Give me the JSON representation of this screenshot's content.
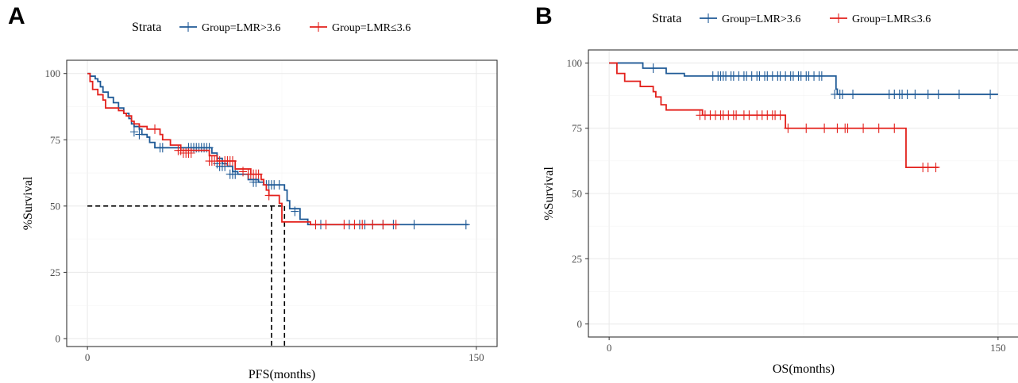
{
  "chart_data": [
    {
      "panel_label": "A",
      "type": "line",
      "subtype": "kaplan-meier",
      "title": "",
      "xlabel": "PFS(months)",
      "ylabel": "%Survival",
      "xlim": [
        -8,
        158
      ],
      "ylim": [
        -3,
        105
      ],
      "xticks": [
        0,
        150
      ],
      "yticks": [
        0,
        25,
        50,
        75,
        100
      ],
      "grid": true,
      "legend": {
        "title": "Strata",
        "position": "top"
      },
      "colors": {
        "LMR_gt": "#1f5a96",
        "LMR_le": "#e3211c"
      },
      "series": [
        {
          "name": "Group=LMR>3.6",
          "color": "#1f5a96",
          "steps": [
            [
              0,
              100
            ],
            [
              1,
              99
            ],
            [
              3,
              98
            ],
            [
              4,
              97
            ],
            [
              5,
              95
            ],
            [
              6,
              93
            ],
            [
              8,
              91
            ],
            [
              10,
              89
            ],
            [
              12,
              87
            ],
            [
              14,
              85
            ],
            [
              16,
              83
            ],
            [
              17,
              81
            ],
            [
              18,
              80
            ],
            [
              20,
              79
            ],
            [
              21,
              77
            ],
            [
              23,
              76
            ],
            [
              24,
              74
            ],
            [
              26,
              72
            ],
            [
              38,
              72
            ],
            [
              47,
              72
            ],
            [
              48,
              70
            ],
            [
              50,
              68
            ],
            [
              52,
              66
            ],
            [
              54,
              65
            ],
            [
              56,
              63
            ],
            [
              58,
              62
            ],
            [
              60,
              62
            ],
            [
              62,
              60
            ],
            [
              66,
              59
            ],
            [
              68,
              58
            ],
            [
              74,
              58
            ],
            [
              75,
              58
            ],
            [
              76,
              56
            ],
            [
              77,
              52
            ],
            [
              78,
              49
            ],
            [
              81,
              49
            ],
            [
              82,
              45
            ],
            [
              85,
              43
            ],
            [
              147,
              43
            ]
          ],
          "censor": [
            [
              18,
              78
            ],
            [
              20,
              77
            ],
            [
              28,
              72
            ],
            [
              29,
              72
            ],
            [
              39,
              72
            ],
            [
              40,
              72
            ],
            [
              41,
              72
            ],
            [
              42,
              72
            ],
            [
              43,
              72
            ],
            [
              44,
              72
            ],
            [
              45,
              72
            ],
            [
              46,
              72
            ],
            [
              47,
              72
            ],
            [
              50,
              66
            ],
            [
              51,
              65
            ],
            [
              52,
              65
            ],
            [
              53,
              65
            ],
            [
              55,
              62
            ],
            [
              56,
              62
            ],
            [
              57,
              62
            ],
            [
              64,
              59
            ],
            [
              65,
              59
            ],
            [
              69,
              58
            ],
            [
              70,
              58
            ],
            [
              71,
              58
            ],
            [
              72,
              58
            ],
            [
              74,
              58
            ],
            [
              80,
              48
            ],
            [
              90,
              43
            ],
            [
              101,
              43
            ],
            [
              105,
              43
            ],
            [
              107,
              43
            ],
            [
              110,
              43
            ],
            [
              114,
              43
            ],
            [
              118,
              43
            ],
            [
              126,
              43
            ],
            [
              146,
              43
            ]
          ]
        },
        {
          "name": "Group=LMR≤3.6",
          "color": "#e3211c",
          "steps": [
            [
              0,
              100
            ],
            [
              1,
              97
            ],
            [
              2,
              94
            ],
            [
              4,
              92
            ],
            [
              6,
              90
            ],
            [
              7,
              87
            ],
            [
              11,
              87
            ],
            [
              12,
              86
            ],
            [
              14,
              85
            ],
            [
              15,
              84
            ],
            [
              17,
              82
            ],
            [
              18,
              81
            ],
            [
              20,
              80
            ],
            [
              23,
              79
            ],
            [
              27,
              79
            ],
            [
              28,
              77
            ],
            [
              29,
              75
            ],
            [
              32,
              73
            ],
            [
              35,
              73
            ],
            [
              36,
              71
            ],
            [
              46,
              71
            ],
            [
              47,
              69
            ],
            [
              50,
              67
            ],
            [
              56,
              67
            ],
            [
              57,
              64
            ],
            [
              58,
              64
            ],
            [
              63,
              62
            ],
            [
              66,
              62
            ],
            [
              67,
              60
            ],
            [
              68,
              58
            ],
            [
              69,
              56
            ],
            [
              70,
              54
            ],
            [
              73,
              54
            ],
            [
              74,
              51
            ],
            [
              75,
              44
            ],
            [
              84,
              44
            ],
            [
              86,
              43
            ],
            [
              120,
              43
            ]
          ],
          "censor": [
            [
              26,
              79
            ],
            [
              35,
              71
            ],
            [
              36,
              71
            ],
            [
              37,
              70
            ],
            [
              38,
              70
            ],
            [
              39,
              70
            ],
            [
              40,
              70
            ],
            [
              47,
              67
            ],
            [
              48,
              67
            ],
            [
              49,
              67
            ],
            [
              51,
              67
            ],
            [
              53,
              67
            ],
            [
              54,
              67
            ],
            [
              55,
              67
            ],
            [
              56,
              67
            ],
            [
              60,
              63
            ],
            [
              62,
              62
            ],
            [
              63,
              62
            ],
            [
              64,
              62
            ],
            [
              65,
              62
            ],
            [
              66,
              62
            ],
            [
              70,
              54
            ],
            [
              88,
              43
            ],
            [
              92,
              43
            ],
            [
              99,
              43
            ],
            [
              103,
              43
            ],
            [
              106,
              43
            ],
            [
              110,
              43
            ],
            [
              114,
              43
            ],
            [
              119,
              43
            ]
          ]
        }
      ],
      "median_lines": [
        {
          "y": 50,
          "x_start": 0,
          "x_end": 76,
          "vertical_x": [
            71,
            76
          ]
        }
      ]
    },
    {
      "panel_label": "B",
      "type": "line",
      "subtype": "kaplan-meier",
      "title": "",
      "xlabel": "OS(months)",
      "ylabel": "%Survival",
      "xlim": [
        -8,
        158
      ],
      "ylim": [
        -5,
        105
      ],
      "xticks": [
        0,
        150
      ],
      "yticks": [
        0,
        25,
        50,
        75,
        100
      ],
      "grid": true,
      "legend": {
        "title": "Strata",
        "position": "top"
      },
      "colors": {
        "LMR_gt": "#1f5a96",
        "LMR_le": "#e3211c"
      },
      "series": [
        {
          "name": "Group=LMR>3.6",
          "color": "#1f5a96",
          "steps": [
            [
              0,
              100
            ],
            [
              13,
              98
            ],
            [
              22,
              96
            ],
            [
              29,
              95
            ],
            [
              87,
              95
            ],
            [
              87.5,
              90
            ],
            [
              88,
              88
            ],
            [
              150,
              88
            ]
          ],
          "censor": [
            [
              17,
              98
            ],
            [
              40,
              95
            ],
            [
              42,
              95
            ],
            [
              43,
              95
            ],
            [
              44,
              95
            ],
            [
              45,
              95
            ],
            [
              47,
              95
            ],
            [
              48,
              95
            ],
            [
              50,
              95
            ],
            [
              52,
              95
            ],
            [
              53,
              95
            ],
            [
              55,
              95
            ],
            [
              57,
              95
            ],
            [
              58,
              95
            ],
            [
              60,
              95
            ],
            [
              61,
              95
            ],
            [
              63,
              95
            ],
            [
              65,
              95
            ],
            [
              66,
              95
            ],
            [
              68,
              95
            ],
            [
              70,
              95
            ],
            [
              71,
              95
            ],
            [
              73,
              95
            ],
            [
              74,
              95
            ],
            [
              76,
              95
            ],
            [
              77,
              95
            ],
            [
              79,
              95
            ],
            [
              81,
              95
            ],
            [
              82,
              95
            ],
            [
              87,
              88
            ],
            [
              89,
              88
            ],
            [
              90,
              88
            ],
            [
              94,
              88
            ],
            [
              108,
              88
            ],
            [
              110,
              88
            ],
            [
              112,
              88
            ],
            [
              113,
              88
            ],
            [
              115,
              88
            ],
            [
              118,
              88
            ],
            [
              123,
              88
            ],
            [
              127,
              88
            ],
            [
              135,
              88
            ],
            [
              147,
              88
            ]
          ]
        },
        {
          "name": "Group=LMR≤3.6",
          "color": "#e3211c",
          "steps": [
            [
              0,
              100
            ],
            [
              3,
              96
            ],
            [
              6,
              93
            ],
            [
              12,
              91
            ],
            [
              17,
              89
            ],
            [
              18,
              87
            ],
            [
              20,
              84
            ],
            [
              22,
              82
            ],
            [
              35,
              82
            ],
            [
              36,
              80
            ],
            [
              67,
              80
            ],
            [
              68,
              75
            ],
            [
              114,
              75
            ],
            [
              114.5,
              60
            ],
            [
              127,
              60
            ]
          ],
          "censor": [
            [
              35,
              80
            ],
            [
              37,
              80
            ],
            [
              39,
              80
            ],
            [
              41,
              80
            ],
            [
              43,
              80
            ],
            [
              44,
              80
            ],
            [
              46,
              80
            ],
            [
              48,
              80
            ],
            [
              49,
              80
            ],
            [
              52,
              80
            ],
            [
              54,
              80
            ],
            [
              57,
              80
            ],
            [
              59,
              80
            ],
            [
              61,
              80
            ],
            [
              63,
              80
            ],
            [
              64,
              80
            ],
            [
              66,
              80
            ],
            [
              69,
              75
            ],
            [
              76,
              75
            ],
            [
              83,
              75
            ],
            [
              88,
              75
            ],
            [
              91,
              75
            ],
            [
              92,
              75
            ],
            [
              98,
              75
            ],
            [
              104,
              75
            ],
            [
              110,
              75
            ],
            [
              121,
              60
            ],
            [
              123,
              60
            ],
            [
              126,
              60
            ]
          ]
        }
      ],
      "median_lines": []
    }
  ]
}
